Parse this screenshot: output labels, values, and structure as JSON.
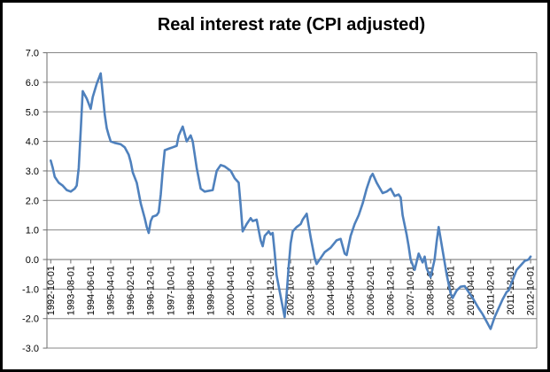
{
  "title": "Real interest rate (CPI adjusted)",
  "colors": {
    "series_line": "#4F81BD",
    "gridline": "#878787",
    "axis_line": "#6e6e6e",
    "text": "#000000",
    "background": "#ffffff",
    "border": "#000000"
  },
  "chart_data": {
    "type": "line",
    "title": "Real interest rate (CPI adjusted)",
    "xlabel": "",
    "ylabel": "",
    "grid": true,
    "legend": "none",
    "ylim": [
      -3.0,
      7.0
    ],
    "y_tick_step": 1.0,
    "y_tick_labels": [
      "7.0",
      "6.0",
      "5.0",
      "4.0",
      "3.0",
      "2.0",
      "1.0",
      "0.0",
      "-1.0",
      "-2.0",
      "-3.0"
    ],
    "x_tick_labels": [
      "1992-10-01",
      "1993-08-01",
      "1994-06-01",
      "1995-04-01",
      "1996-02-01",
      "1996-12-01",
      "1997-10-01",
      "1998-08-01",
      "1999-06-01",
      "2000-04-01",
      "2001-02-01",
      "2001-12-01",
      "2002-10-01",
      "2003-08-01",
      "2004-06-01",
      "2005-04-01",
      "2006-02-01",
      "2006-12-01",
      "2007-10-01",
      "2008-08-01",
      "2009-06-01",
      "2010-04-01",
      "2011-02-01",
      "2011-12-01",
      "2012-10-01"
    ],
    "x_range": [
      "1992-10-01",
      "2012-10-01"
    ],
    "series": [
      {
        "name": "Real interest rate (CPI adjusted)",
        "color": "#4F81BD",
        "points_date_value": [
          [
            "1992-10",
            3.35
          ],
          [
            "1992-11",
            3.1
          ],
          [
            "1992-12",
            2.8
          ],
          [
            "1993-02",
            2.6
          ],
          [
            "1993-04",
            2.5
          ],
          [
            "1993-06",
            2.35
          ],
          [
            "1993-08",
            2.3
          ],
          [
            "1993-10",
            2.4
          ],
          [
            "1993-11",
            2.5
          ],
          [
            "1993-12",
            3.1
          ],
          [
            "1994-01",
            4.4
          ],
          [
            "1994-02",
            5.7
          ],
          [
            "1994-04",
            5.45
          ],
          [
            "1994-06",
            5.1
          ],
          [
            "1994-07",
            5.5
          ],
          [
            "1994-09",
            5.95
          ],
          [
            "1994-11",
            6.3
          ],
          [
            "1994-12",
            5.6
          ],
          [
            "1995-01",
            4.9
          ],
          [
            "1995-02",
            4.45
          ],
          [
            "1995-03",
            4.2
          ],
          [
            "1995-04",
            4.0
          ],
          [
            "1995-06",
            3.95
          ],
          [
            "1995-09",
            3.9
          ],
          [
            "1995-11",
            3.8
          ],
          [
            "1996-01",
            3.55
          ],
          [
            "1996-02",
            3.3
          ],
          [
            "1996-03",
            2.95
          ],
          [
            "1996-05",
            2.6
          ],
          [
            "1996-07",
            1.9
          ],
          [
            "1996-09",
            1.4
          ],
          [
            "1996-10",
            1.1
          ],
          [
            "1996-11",
            0.9
          ],
          [
            "1996-12",
            1.3
          ],
          [
            "1997-01",
            1.45
          ],
          [
            "1997-03",
            1.5
          ],
          [
            "1997-04",
            1.6
          ],
          [
            "1997-05",
            2.2
          ],
          [
            "1997-06",
            3.0
          ],
          [
            "1997-07",
            3.7
          ],
          [
            "1997-09",
            3.75
          ],
          [
            "1997-11",
            3.8
          ],
          [
            "1998-01",
            3.85
          ],
          [
            "1998-02",
            4.2
          ],
          [
            "1998-04",
            4.5
          ],
          [
            "1998-06",
            4.0
          ],
          [
            "1998-08",
            4.2
          ],
          [
            "1998-09",
            4.0
          ],
          [
            "1998-11",
            3.1
          ],
          [
            "1999-01",
            2.4
          ],
          [
            "1999-03",
            2.3
          ],
          [
            "1999-07",
            2.35
          ],
          [
            "1999-09",
            3.0
          ],
          [
            "1999-11",
            3.2
          ],
          [
            "2000-01",
            3.15
          ],
          [
            "2000-04",
            3.0
          ],
          [
            "2000-06",
            2.75
          ],
          [
            "2000-08",
            2.6
          ],
          [
            "2000-09",
            1.8
          ],
          [
            "2000-10",
            0.95
          ],
          [
            "2000-12",
            1.2
          ],
          [
            "2001-02",
            1.4
          ],
          [
            "2001-03",
            1.3
          ],
          [
            "2001-05",
            1.35
          ],
          [
            "2001-07",
            0.65
          ],
          [
            "2001-08",
            0.45
          ],
          [
            "2001-09",
            0.8
          ],
          [
            "2001-11",
            0.95
          ],
          [
            "2001-12",
            0.85
          ],
          [
            "2002-01",
            0.9
          ],
          [
            "2002-02",
            0.25
          ],
          [
            "2002-03",
            -0.55
          ],
          [
            "2002-05",
            -1.25
          ],
          [
            "2002-07",
            -1.95
          ],
          [
            "2002-08",
            -1.15
          ],
          [
            "2002-09",
            -0.25
          ],
          [
            "2002-10",
            0.55
          ],
          [
            "2002-11",
            0.95
          ],
          [
            "2003-01",
            1.1
          ],
          [
            "2003-03",
            1.2
          ],
          [
            "2003-04",
            1.35
          ],
          [
            "2003-06",
            1.55
          ],
          [
            "2003-07",
            1.15
          ],
          [
            "2003-08",
            0.75
          ],
          [
            "2003-10",
            0.05
          ],
          [
            "2003-11",
            -0.15
          ],
          [
            "2004-01",
            0.05
          ],
          [
            "2004-03",
            0.25
          ],
          [
            "2004-06",
            0.4
          ],
          [
            "2004-09",
            0.65
          ],
          [
            "2004-11",
            0.7
          ],
          [
            "2005-01",
            0.2
          ],
          [
            "2005-02",
            0.15
          ],
          [
            "2005-04",
            0.8
          ],
          [
            "2005-06",
            1.2
          ],
          [
            "2005-08",
            1.5
          ],
          [
            "2005-10",
            1.9
          ],
          [
            "2005-12",
            2.4
          ],
          [
            "2006-02",
            2.8
          ],
          [
            "2006-03",
            2.9
          ],
          [
            "2006-05",
            2.6
          ],
          [
            "2006-08",
            2.25
          ],
          [
            "2006-10",
            2.3
          ],
          [
            "2006-12",
            2.4
          ],
          [
            "2007-02",
            2.15
          ],
          [
            "2007-04",
            2.2
          ],
          [
            "2007-05",
            2.1
          ],
          [
            "2007-06",
            1.5
          ],
          [
            "2007-08",
            0.85
          ],
          [
            "2007-09",
            0.45
          ],
          [
            "2007-10",
            0.0
          ],
          [
            "2007-12",
            -0.35
          ],
          [
            "2008-02",
            0.2
          ],
          [
            "2008-04",
            -0.1
          ],
          [
            "2008-05",
            0.1
          ],
          [
            "2008-06",
            -0.3
          ],
          [
            "2008-08",
            -0.6
          ],
          [
            "2008-10",
            0.0
          ],
          [
            "2008-11",
            0.6
          ],
          [
            "2008-12",
            1.1
          ],
          [
            "2009-02",
            0.3
          ],
          [
            "2009-04",
            -0.5
          ],
          [
            "2009-06",
            -1.15
          ],
          [
            "2009-07",
            -1.3
          ],
          [
            "2009-09",
            -1.05
          ],
          [
            "2009-11",
            -0.92
          ],
          [
            "2010-01",
            -0.9
          ],
          [
            "2010-03",
            -1.1
          ],
          [
            "2010-05",
            -1.3
          ],
          [
            "2010-08",
            -1.65
          ],
          [
            "2010-10",
            -1.85
          ],
          [
            "2010-12",
            -2.1
          ],
          [
            "2011-02",
            -2.35
          ],
          [
            "2011-04",
            -1.95
          ],
          [
            "2011-06",
            -1.65
          ],
          [
            "2011-08",
            -1.35
          ],
          [
            "2011-10",
            -1.1
          ],
          [
            "2011-11",
            -1.05
          ],
          [
            "2012-01",
            -0.7
          ],
          [
            "2012-03",
            -0.35
          ],
          [
            "2012-05",
            -0.2
          ],
          [
            "2012-07",
            -0.05
          ],
          [
            "2012-09",
            0.0
          ],
          [
            "2012-10",
            0.1
          ]
        ]
      }
    ]
  }
}
